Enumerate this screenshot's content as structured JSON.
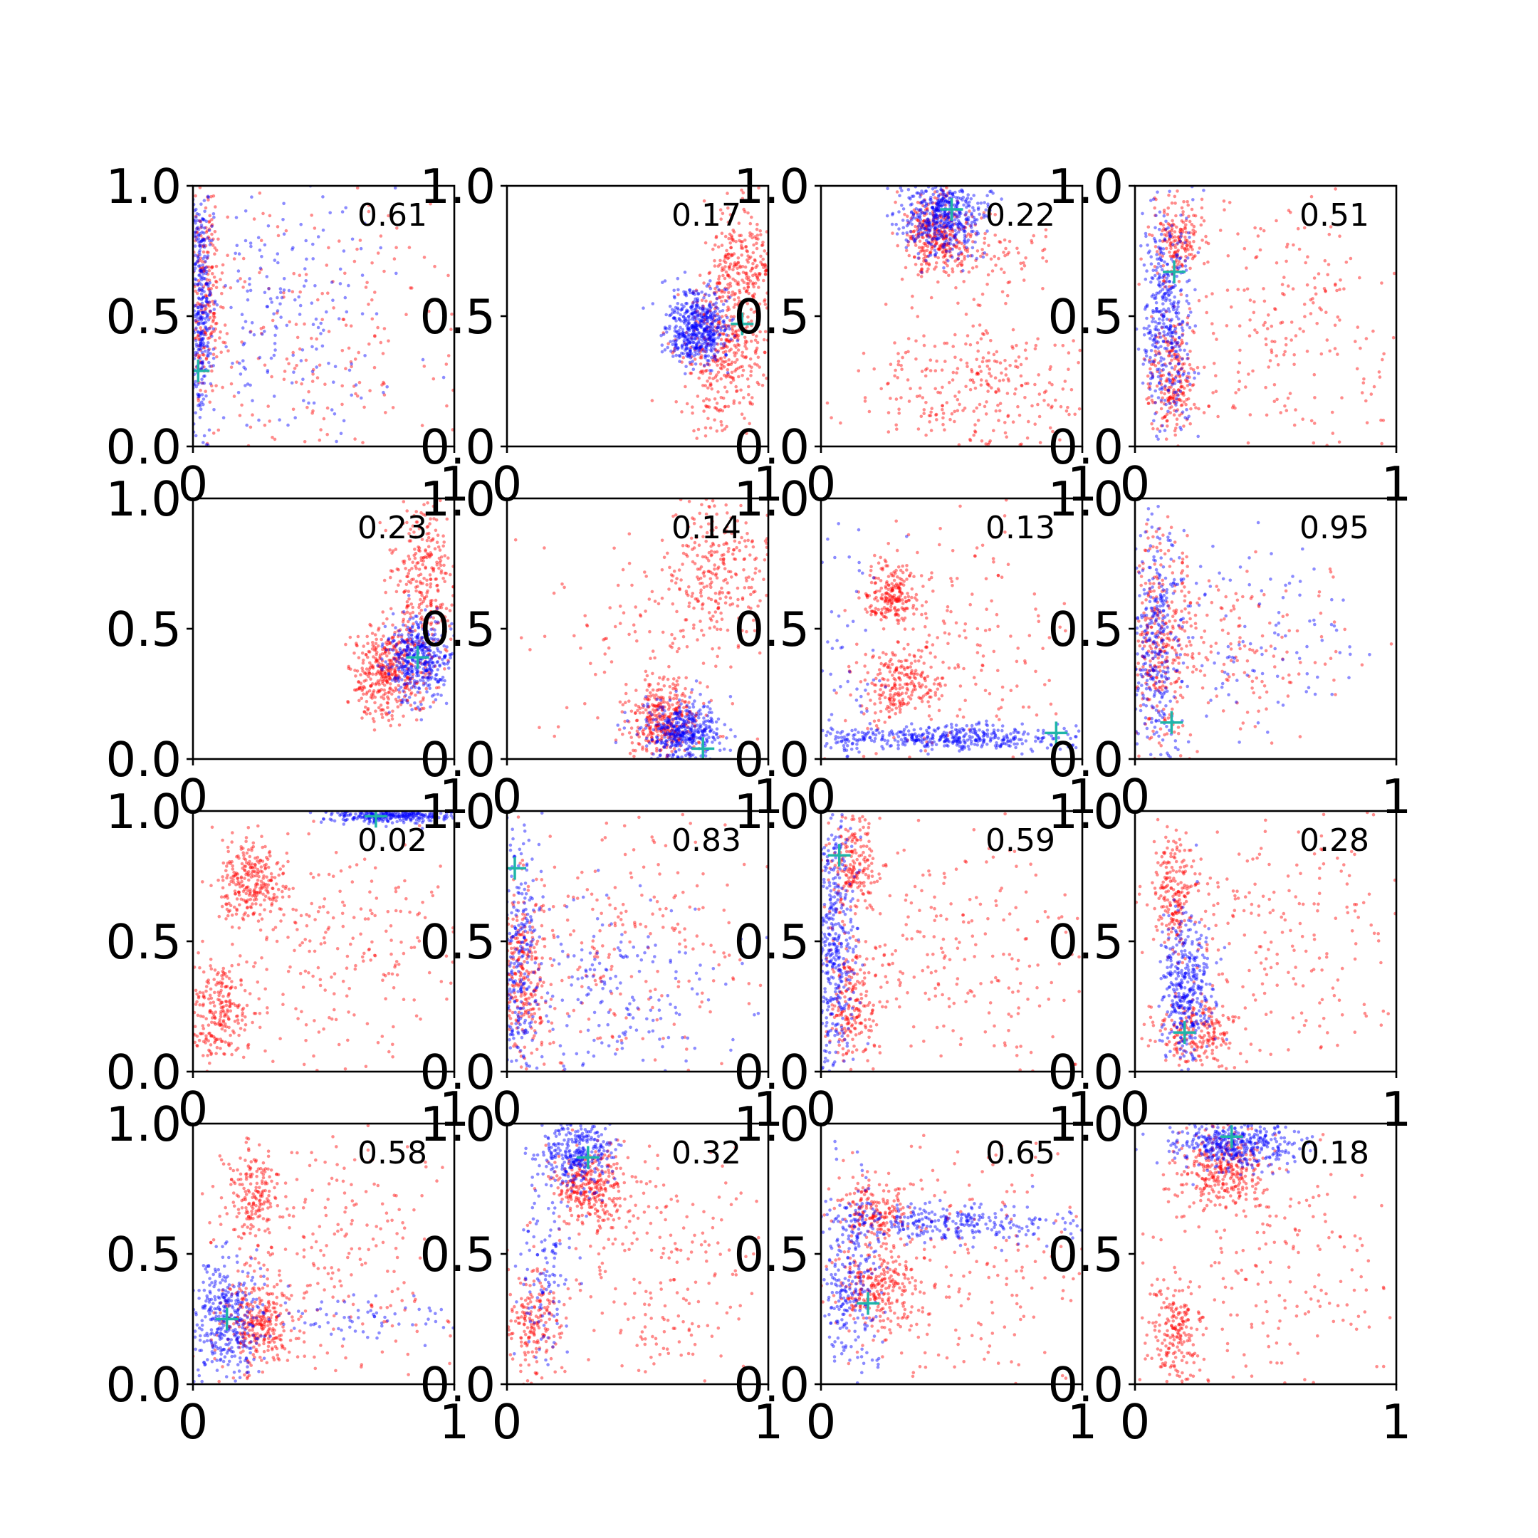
{
  "figure": {
    "grid": [
      4,
      4
    ],
    "colors": {
      "series_a": "#ff0000",
      "series_b": "#0000ff",
      "marker": "#1fb5a8"
    }
  },
  "chart_data": [
    {
      "type": "scatter",
      "label": "0.61",
      "xlim": [
        0,
        1
      ],
      "ylim": [
        0,
        1
      ],
      "xticks": [
        "0",
        "1"
      ],
      "yticks": [
        "0.0",
        "0.5",
        "1.0"
      ],
      "marker": {
        "x": 0.02,
        "y": 0.29
      },
      "series": [
        {
          "clusters": [
            {
              "cx": 0.03,
              "cy": 0.55,
              "sx": 0.02,
              "sy": 0.25,
              "n": 320
            },
            {
              "cx": 0.35,
              "cy": 0.5,
              "sx": 0.22,
              "sy": 0.25,
              "n": 200
            }
          ]
        },
        {
          "clusters": [
            {
              "cx": 0.04,
              "cy": 0.6,
              "sx": 0.04,
              "sy": 0.22,
              "n": 260
            },
            {
              "cx": 0.5,
              "cy": 0.45,
              "sx": 0.3,
              "sy": 0.28,
              "n": 220
            }
          ]
        }
      ]
    },
    {
      "type": "scatter",
      "label": "0.17",
      "xlim": [
        0,
        1
      ],
      "ylim": [
        0,
        1
      ],
      "xticks": [
        "0",
        "1"
      ],
      "yticks": [
        "0.0",
        "0.5",
        "1.0"
      ],
      "marker": {
        "x": 0.9,
        "y": 0.47
      },
      "series": [
        {
          "clusters": [
            {
              "cx": 0.73,
              "cy": 0.45,
              "sx": 0.06,
              "sy": 0.07,
              "n": 520
            }
          ]
        },
        {
          "clusters": [
            {
              "cx": 0.82,
              "cy": 0.35,
              "sx": 0.08,
              "sy": 0.14,
              "n": 380
            },
            {
              "cx": 0.9,
              "cy": 0.7,
              "sx": 0.07,
              "sy": 0.12,
              "n": 250
            }
          ]
        }
      ]
    },
    {
      "type": "scatter",
      "label": "0.22",
      "xlim": [
        0,
        1
      ],
      "ylim": [
        0,
        1
      ],
      "xticks": [
        "0",
        "1"
      ],
      "yticks": [
        "0.0",
        "0.5",
        "1.0"
      ],
      "marker": {
        "x": 0.5,
        "y": 0.91
      },
      "series": [
        {
          "clusters": [
            {
              "cx": 0.47,
              "cy": 0.88,
              "sx": 0.08,
              "sy": 0.07,
              "n": 480
            }
          ]
        },
        {
          "clusters": [
            {
              "cx": 0.44,
              "cy": 0.82,
              "sx": 0.06,
              "sy": 0.07,
              "n": 320
            },
            {
              "cx": 0.6,
              "cy": 0.22,
              "sx": 0.22,
              "sy": 0.14,
              "n": 300
            },
            {
              "cx": 0.65,
              "cy": 0.72,
              "sx": 0.12,
              "sy": 0.08,
              "n": 90
            }
          ]
        }
      ]
    },
    {
      "type": "scatter",
      "label": "0.51",
      "xlim": [
        0,
        1
      ],
      "ylim": [
        0,
        1
      ],
      "xticks": [
        "0",
        "1"
      ],
      "yticks": [
        "0.0",
        "0.5",
        "1.0"
      ],
      "marker": {
        "x": 0.15,
        "y": 0.67
      },
      "series": [
        {
          "clusters": [
            {
              "cx": 0.12,
              "cy": 0.5,
              "sx": 0.05,
              "sy": 0.24,
              "n": 420
            }
          ]
        },
        {
          "clusters": [
            {
              "cx": 0.16,
              "cy": 0.8,
              "sx": 0.05,
              "sy": 0.08,
              "n": 180
            },
            {
              "cx": 0.14,
              "cy": 0.25,
              "sx": 0.05,
              "sy": 0.12,
              "n": 220
            },
            {
              "cx": 0.55,
              "cy": 0.45,
              "sx": 0.25,
              "sy": 0.28,
              "n": 260
            }
          ]
        }
      ]
    },
    {
      "type": "scatter",
      "label": "0.23",
      "xlim": [
        0,
        1
      ],
      "ylim": [
        0,
        1
      ],
      "xticks": [
        "0",
        "1"
      ],
      "yticks": [
        "0.0",
        "0.5",
        "1.0"
      ],
      "marker": {
        "x": 0.86,
        "y": 0.39
      },
      "series": [
        {
          "clusters": [
            {
              "cx": 0.86,
              "cy": 0.38,
              "sx": 0.06,
              "sy": 0.08,
              "n": 400
            }
          ]
        },
        {
          "clusters": [
            {
              "cx": 0.75,
              "cy": 0.33,
              "sx": 0.07,
              "sy": 0.09,
              "n": 420
            },
            {
              "cx": 0.88,
              "cy": 0.7,
              "sx": 0.06,
              "sy": 0.15,
              "n": 280
            }
          ]
        }
      ]
    },
    {
      "type": "scatter",
      "label": "0.14",
      "xlim": [
        0,
        1
      ],
      "ylim": [
        0,
        1
      ],
      "xticks": [
        "0",
        "1"
      ],
      "yticks": [
        "0.0",
        "0.5",
        "1.0"
      ],
      "marker": {
        "x": 0.75,
        "y": 0.04
      },
      "series": [
        {
          "clusters": [
            {
              "cx": 0.67,
              "cy": 0.1,
              "sx": 0.08,
              "sy": 0.06,
              "n": 420
            }
          ]
        },
        {
          "clusters": [
            {
              "cx": 0.6,
              "cy": 0.15,
              "sx": 0.07,
              "sy": 0.07,
              "n": 340
            },
            {
              "cx": 0.8,
              "cy": 0.75,
              "sx": 0.1,
              "sy": 0.15,
              "n": 260
            },
            {
              "cx": 0.55,
              "cy": 0.45,
              "sx": 0.2,
              "sy": 0.2,
              "n": 120
            }
          ]
        }
      ]
    },
    {
      "type": "scatter",
      "label": "0.13",
      "xlim": [
        0,
        1
      ],
      "ylim": [
        0,
        1
      ],
      "xticks": [
        "0",
        "1"
      ],
      "yticks": [
        "0.0",
        "0.5",
        "1.0"
      ],
      "marker": {
        "x": 0.9,
        "y": 0.1
      },
      "series": [
        {
          "clusters": [
            {
              "cx": 0.45,
              "cy": 0.08,
              "sx": 0.28,
              "sy": 0.025,
              "n": 460
            },
            {
              "cx": 0.1,
              "cy": 0.45,
              "sx": 0.08,
              "sy": 0.3,
              "n": 60
            }
          ]
        },
        {
          "clusters": [
            {
              "cx": 0.27,
              "cy": 0.63,
              "sx": 0.05,
              "sy": 0.06,
              "n": 200
            },
            {
              "cx": 0.3,
              "cy": 0.28,
              "sx": 0.07,
              "sy": 0.07,
              "n": 220
            },
            {
              "cx": 0.5,
              "cy": 0.4,
              "sx": 0.25,
              "sy": 0.25,
              "n": 200
            }
          ]
        }
      ]
    },
    {
      "type": "scatter",
      "label": "0.95",
      "xlim": [
        0,
        1
      ],
      "ylim": [
        0,
        1
      ],
      "xticks": [
        "0",
        "1"
      ],
      "yticks": [
        "0.0",
        "0.5",
        "1.0"
      ],
      "marker": {
        "x": 0.14,
        "y": 0.14
      },
      "series": [
        {
          "clusters": [
            {
              "cx": 0.08,
              "cy": 0.45,
              "sx": 0.05,
              "sy": 0.25,
              "n": 320
            },
            {
              "cx": 0.4,
              "cy": 0.45,
              "sx": 0.25,
              "sy": 0.2,
              "n": 120
            }
          ]
        },
        {
          "clusters": [
            {
              "cx": 0.1,
              "cy": 0.45,
              "sx": 0.06,
              "sy": 0.22,
              "n": 320
            },
            {
              "cx": 0.4,
              "cy": 0.45,
              "sx": 0.2,
              "sy": 0.15,
              "n": 160
            }
          ]
        }
      ]
    },
    {
      "type": "scatter",
      "label": "0.02",
      "xlim": [
        0,
        1
      ],
      "ylim": [
        0,
        1
      ],
      "xticks": [
        "0",
        "1"
      ],
      "yticks": [
        "0.0",
        "0.5",
        "1.0"
      ],
      "marker": {
        "x": 0.7,
        "y": 0.98
      },
      "series": [
        {
          "clusters": [
            {
              "cx": 0.75,
              "cy": 0.98,
              "sx": 0.13,
              "sy": 0.012,
              "n": 300
            }
          ]
        },
        {
          "clusters": [
            {
              "cx": 0.22,
              "cy": 0.72,
              "sx": 0.06,
              "sy": 0.08,
              "n": 260
            },
            {
              "cx": 0.1,
              "cy": 0.23,
              "sx": 0.07,
              "sy": 0.09,
              "n": 260
            },
            {
              "cx": 0.55,
              "cy": 0.45,
              "sx": 0.25,
              "sy": 0.25,
              "n": 240
            }
          ]
        }
      ]
    },
    {
      "type": "scatter",
      "label": "0.83",
      "xlim": [
        0,
        1
      ],
      "ylim": [
        0,
        1
      ],
      "xticks": [
        "0",
        "1"
      ],
      "yticks": [
        "0.0",
        "0.5",
        "1.0"
      ],
      "marker": {
        "x": 0.03,
        "y": 0.78
      },
      "series": [
        {
          "clusters": [
            {
              "cx": 0.04,
              "cy": 0.45,
              "sx": 0.04,
              "sy": 0.25,
              "n": 300
            },
            {
              "cx": 0.4,
              "cy": 0.3,
              "sx": 0.25,
              "sy": 0.18,
              "n": 200
            }
          ]
        },
        {
          "clusters": [
            {
              "cx": 0.06,
              "cy": 0.35,
              "sx": 0.05,
              "sy": 0.15,
              "n": 260
            },
            {
              "cx": 0.45,
              "cy": 0.5,
              "sx": 0.28,
              "sy": 0.25,
              "n": 240
            }
          ]
        }
      ]
    },
    {
      "type": "scatter",
      "label": "0.59",
      "xlim": [
        0,
        1
      ],
      "ylim": [
        0,
        1
      ],
      "xticks": [
        "0",
        "1"
      ],
      "yticks": [
        "0.0",
        "0.5",
        "1.0"
      ],
      "marker": {
        "x": 0.07,
        "y": 0.83
      },
      "series": [
        {
          "clusters": [
            {
              "cx": 0.05,
              "cy": 0.5,
              "sx": 0.04,
              "sy": 0.28,
              "n": 420
            }
          ]
        },
        {
          "clusters": [
            {
              "cx": 0.12,
              "cy": 0.8,
              "sx": 0.05,
              "sy": 0.1,
              "n": 200
            },
            {
              "cx": 0.12,
              "cy": 0.25,
              "sx": 0.05,
              "sy": 0.12,
              "n": 200
            },
            {
              "cx": 0.5,
              "cy": 0.45,
              "sx": 0.25,
              "sy": 0.25,
              "n": 240
            }
          ]
        }
      ]
    },
    {
      "type": "scatter",
      "label": "0.28",
      "xlim": [
        0,
        1
      ],
      "ylim": [
        0,
        1
      ],
      "xticks": [
        "0",
        "1"
      ],
      "yticks": [
        "0.0",
        "0.5",
        "1.0"
      ],
      "marker": {
        "x": 0.19,
        "y": 0.15
      },
      "series": [
        {
          "clusters": [
            {
              "cx": 0.2,
              "cy": 0.3,
              "sx": 0.05,
              "sy": 0.15,
              "n": 380
            }
          ]
        },
        {
          "clusters": [
            {
              "cx": 0.15,
              "cy": 0.7,
              "sx": 0.04,
              "sy": 0.12,
              "n": 200
            },
            {
              "cx": 0.25,
              "cy": 0.15,
              "sx": 0.08,
              "sy": 0.06,
              "n": 200
            },
            {
              "cx": 0.55,
              "cy": 0.5,
              "sx": 0.25,
              "sy": 0.25,
              "n": 240
            }
          ]
        }
      ]
    },
    {
      "type": "scatter",
      "label": "0.58",
      "xlim": [
        0,
        1
      ],
      "ylim": [
        0,
        1
      ],
      "xticks": [
        "0",
        "1"
      ],
      "yticks": [
        "0.0",
        "0.5",
        "1.0"
      ],
      "marker": {
        "x": 0.13,
        "y": 0.25
      },
      "series": [
        {
          "clusters": [
            {
              "cx": 0.12,
              "cy": 0.25,
              "sx": 0.07,
              "sy": 0.12,
              "n": 360
            },
            {
              "cx": 0.6,
              "cy": 0.25,
              "sx": 0.25,
              "sy": 0.04,
              "n": 80
            }
          ]
        },
        {
          "clusters": [
            {
              "cx": 0.25,
              "cy": 0.22,
              "sx": 0.07,
              "sy": 0.08,
              "n": 300
            },
            {
              "cx": 0.23,
              "cy": 0.72,
              "sx": 0.05,
              "sy": 0.1,
              "n": 180
            },
            {
              "cx": 0.55,
              "cy": 0.55,
              "sx": 0.25,
              "sy": 0.25,
              "n": 240
            }
          ]
        }
      ]
    },
    {
      "type": "scatter",
      "label": "0.32",
      "xlim": [
        0,
        1
      ],
      "ylim": [
        0,
        1
      ],
      "xticks": [
        "0",
        "1"
      ],
      "yticks": [
        "0.0",
        "0.5",
        "1.0"
      ],
      "marker": {
        "x": 0.31,
        "y": 0.87
      },
      "series": [
        {
          "clusters": [
            {
              "cx": 0.27,
              "cy": 0.88,
              "sx": 0.07,
              "sy": 0.07,
              "n": 320
            },
            {
              "cx": 0.15,
              "cy": 0.45,
              "sx": 0.05,
              "sy": 0.18,
              "n": 120
            }
          ]
        },
        {
          "clusters": [
            {
              "cx": 0.32,
              "cy": 0.75,
              "sx": 0.07,
              "sy": 0.08,
              "n": 300
            },
            {
              "cx": 0.1,
              "cy": 0.22,
              "sx": 0.05,
              "sy": 0.1,
              "n": 180
            },
            {
              "cx": 0.55,
              "cy": 0.45,
              "sx": 0.25,
              "sy": 0.25,
              "n": 240
            }
          ]
        }
      ]
    },
    {
      "type": "scatter",
      "label": "0.65",
      "xlim": [
        0,
        1
      ],
      "ylim": [
        0,
        1
      ],
      "xticks": [
        "0",
        "1"
      ],
      "yticks": [
        "0.0",
        "0.5",
        "1.0"
      ],
      "marker": {
        "x": 0.18,
        "y": 0.31
      },
      "series": [
        {
          "clusters": [
            {
              "cx": 0.5,
              "cy": 0.62,
              "sx": 0.25,
              "sy": 0.04,
              "n": 300
            },
            {
              "cx": 0.12,
              "cy": 0.4,
              "sx": 0.06,
              "sy": 0.2,
              "n": 260
            }
          ]
        },
        {
          "clusters": [
            {
              "cx": 0.2,
              "cy": 0.65,
              "sx": 0.08,
              "sy": 0.07,
              "n": 200
            },
            {
              "cx": 0.22,
              "cy": 0.35,
              "sx": 0.08,
              "sy": 0.08,
              "n": 240
            },
            {
              "cx": 0.55,
              "cy": 0.4,
              "sx": 0.25,
              "sy": 0.25,
              "n": 200
            }
          ]
        }
      ]
    },
    {
      "type": "scatter",
      "label": "0.18",
      "xlim": [
        0,
        1
      ],
      "ylim": [
        0,
        1
      ],
      "xticks": [
        "0",
        "1"
      ],
      "yticks": [
        "0.0",
        "0.5",
        "1.0"
      ],
      "marker": {
        "x": 0.37,
        "y": 0.95
      },
      "series": [
        {
          "clusters": [
            {
              "cx": 0.38,
              "cy": 0.92,
              "sx": 0.12,
              "sy": 0.05,
              "n": 420
            }
          ]
        },
        {
          "clusters": [
            {
              "cx": 0.33,
              "cy": 0.82,
              "sx": 0.08,
              "sy": 0.07,
              "n": 320
            },
            {
              "cx": 0.15,
              "cy": 0.2,
              "sx": 0.05,
              "sy": 0.1,
              "n": 200
            },
            {
              "cx": 0.55,
              "cy": 0.4,
              "sx": 0.25,
              "sy": 0.25,
              "n": 200
            }
          ]
        }
      ]
    }
  ]
}
